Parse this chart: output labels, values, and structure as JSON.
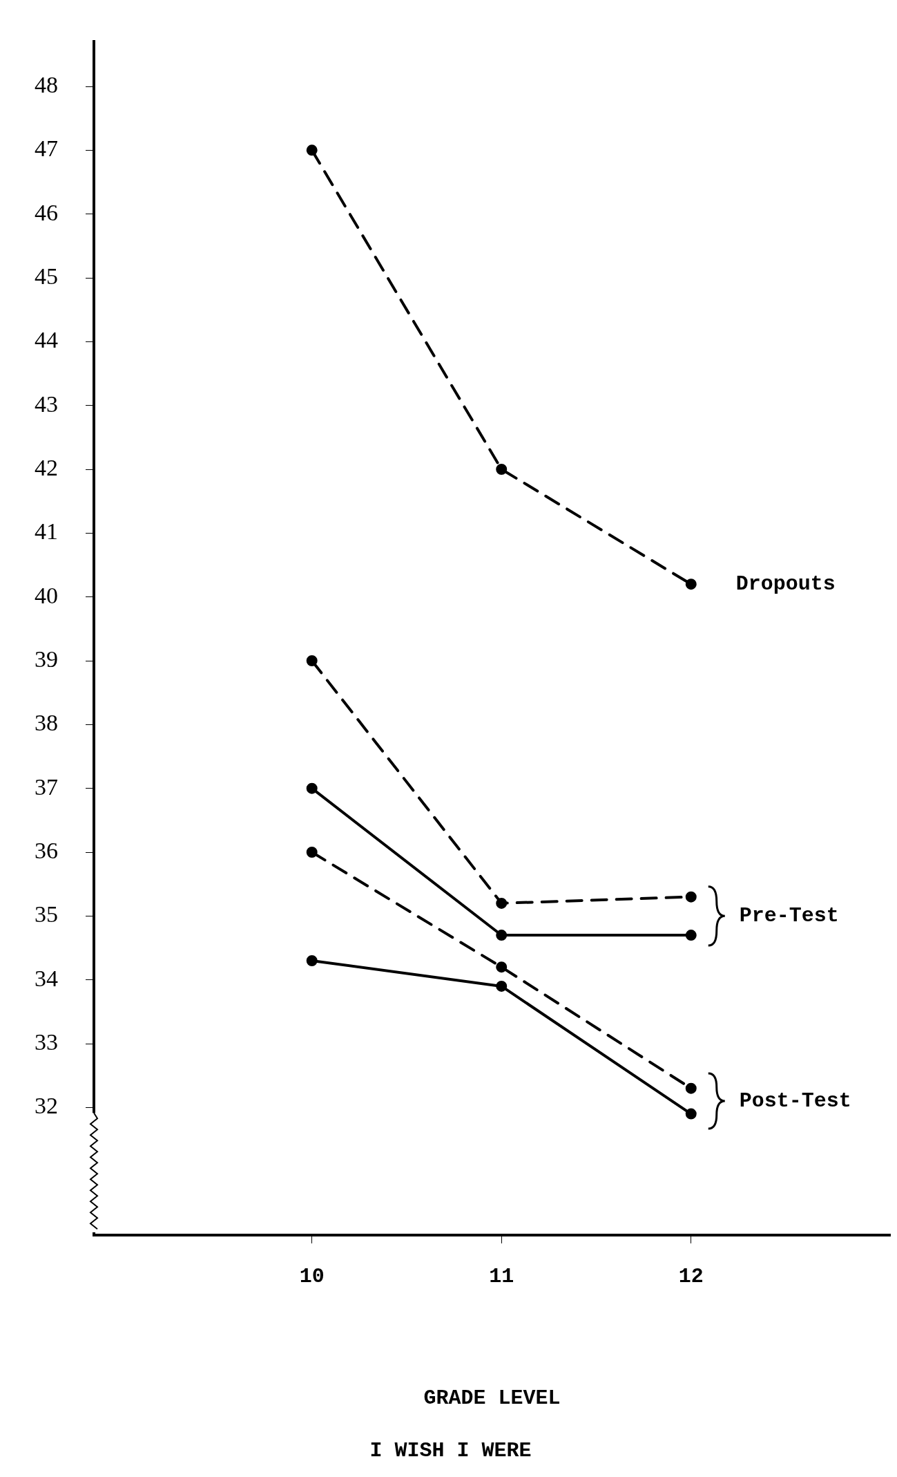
{
  "chart_data": {
    "type": "line",
    "title": "I WISH I WERE",
    "xlabel": "GRADE LEVEL",
    "x": [
      10,
      11,
      12
    ],
    "xlim": [
      8.85,
      13.05
    ],
    "xticks": [
      10,
      11,
      12
    ],
    "ylim": [
      30,
      48.7
    ],
    "yticks": [
      32,
      33,
      34,
      35,
      36,
      37,
      38,
      39,
      40,
      41,
      42,
      43,
      44,
      45,
      46,
      47,
      48
    ],
    "grid": false,
    "legend": false,
    "marker": "circle",
    "series": [
      {
        "name": "Dropouts",
        "color": "#000000",
        "line_style": "dashed",
        "values": [
          47.0,
          42.0,
          40.2
        ]
      },
      {
        "name": "Pre-Test",
        "color": "#000000",
        "line_style": "dashed",
        "values": [
          39.0,
          35.2,
          35.3
        ]
      },
      {
        "color": "#000000",
        "line_style": "solid",
        "values": [
          37.0,
          34.7,
          34.7
        ]
      },
      {
        "name": "Post-Test",
        "color": "#000000",
        "line_style": "dashed",
        "values": [
          36.0,
          34.2,
          32.3
        ]
      },
      {
        "color": "#000000",
        "line_style": "solid",
        "values": [
          34.3,
          33.9,
          31.9
        ]
      }
    ]
  }
}
